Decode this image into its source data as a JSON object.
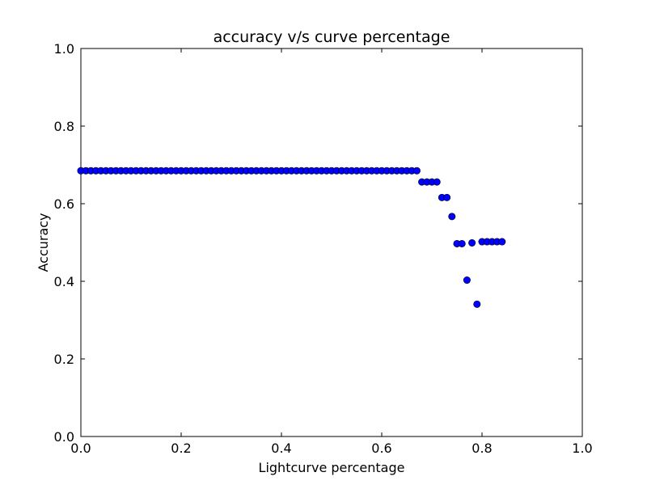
{
  "chart_data": {
    "type": "scatter",
    "title": "accuracy v/s curve percentage",
    "xlabel": "Lightcurve percentage",
    "ylabel": "Accuracy",
    "xlim": [
      0.0,
      1.0
    ],
    "ylim": [
      0.0,
      1.0
    ],
    "xticks": [
      "0.0",
      "0.2",
      "0.4",
      "0.6",
      "0.8",
      "1.0"
    ],
    "yticks": [
      "0.0",
      "0.2",
      "0.4",
      "0.6",
      "0.8",
      "1.0"
    ],
    "grid": false,
    "marker_color": "#0000ff",
    "series": [
      {
        "x": [
          0.0,
          0.01,
          0.02,
          0.03,
          0.04,
          0.05,
          0.06,
          0.07,
          0.08,
          0.09,
          0.1,
          0.11,
          0.12,
          0.13,
          0.14,
          0.15,
          0.16,
          0.17,
          0.18,
          0.19,
          0.2,
          0.21,
          0.22,
          0.23,
          0.24,
          0.25,
          0.26,
          0.27,
          0.28,
          0.29,
          0.3,
          0.31,
          0.32,
          0.33,
          0.34,
          0.35,
          0.36,
          0.37,
          0.38,
          0.39,
          0.4,
          0.41,
          0.42,
          0.43,
          0.44,
          0.45,
          0.46,
          0.47,
          0.48,
          0.49,
          0.5,
          0.51,
          0.52,
          0.53,
          0.54,
          0.55,
          0.56,
          0.57,
          0.58,
          0.59,
          0.6,
          0.61,
          0.62,
          0.63,
          0.64,
          0.65,
          0.66,
          0.67,
          0.68,
          0.69,
          0.7,
          0.71,
          0.72,
          0.73,
          0.74,
          0.75,
          0.76,
          0.77,
          0.78,
          0.79,
          0.8,
          0.81,
          0.82,
          0.83,
          0.84
        ],
        "y": [
          0.685,
          0.685,
          0.685,
          0.685,
          0.685,
          0.685,
          0.685,
          0.685,
          0.685,
          0.685,
          0.685,
          0.685,
          0.685,
          0.685,
          0.685,
          0.685,
          0.685,
          0.685,
          0.685,
          0.685,
          0.685,
          0.685,
          0.685,
          0.685,
          0.685,
          0.685,
          0.685,
          0.685,
          0.685,
          0.685,
          0.685,
          0.685,
          0.685,
          0.685,
          0.685,
          0.685,
          0.685,
          0.685,
          0.685,
          0.685,
          0.685,
          0.685,
          0.685,
          0.685,
          0.685,
          0.685,
          0.685,
          0.685,
          0.685,
          0.685,
          0.685,
          0.685,
          0.685,
          0.685,
          0.685,
          0.685,
          0.685,
          0.685,
          0.685,
          0.685,
          0.685,
          0.685,
          0.685,
          0.685,
          0.685,
          0.685,
          0.685,
          0.685,
          0.656,
          0.656,
          0.656,
          0.656,
          0.616,
          0.616,
          0.567,
          0.497,
          0.497,
          0.403,
          0.499,
          0.341,
          0.502,
          0.502,
          0.502,
          0.502,
          0.502
        ]
      }
    ]
  }
}
